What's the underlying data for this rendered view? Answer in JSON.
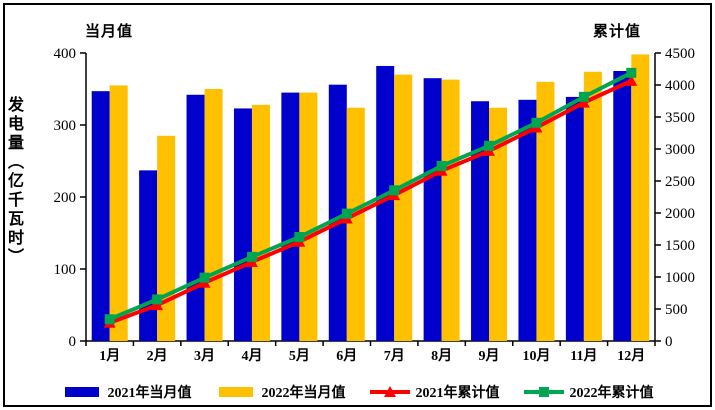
{
  "chart_data": {
    "type": "combo",
    "title": "",
    "categories": [
      "1月",
      "2月",
      "3月",
      "4月",
      "5月",
      "6月",
      "7月",
      "8月",
      "9月",
      "10月",
      "11月",
      "12月"
    ],
    "series": [
      {
        "name": "2021年当月值",
        "type": "bar",
        "axis": "left",
        "color": "#0000cc",
        "marker": "rect",
        "values": [
          347,
          237,
          342,
          323,
          345,
          356,
          382,
          365,
          333,
          335,
          339,
          375
        ]
      },
      {
        "name": "2022年当月值",
        "type": "bar",
        "axis": "left",
        "color": "#ffc000",
        "marker": "rect",
        "values": [
          355,
          285,
          350,
          328,
          345,
          324,
          370,
          363,
          324,
          360,
          374,
          398
        ]
      },
      {
        "name": "2021年累计值",
        "type": "line",
        "axis": "right",
        "color": "#ff0000",
        "marker": "triangle",
        "values": [
          285,
          560,
          910,
          1235,
          1550,
          1915,
          2280,
          2660,
          2970,
          3335,
          3725,
          4065
        ]
      },
      {
        "name": "2022年累计值",
        "type": "line",
        "axis": "right",
        "color": "#00a550",
        "marker": "square",
        "values": [
          340,
          650,
          990,
          1315,
          1625,
          1990,
          2355,
          2735,
          3050,
          3410,
          3815,
          4190
        ]
      }
    ],
    "left_axis": {
      "title": "当月值",
      "min": 0,
      "max": 400,
      "step": 100,
      "tick_labels": [
        "0",
        "100",
        "200",
        "300",
        "400"
      ]
    },
    "right_axis": {
      "title": "累计值",
      "min": 0,
      "max": 4500,
      "step": 500,
      "tick_labels": [
        "0",
        "500",
        "1000",
        "1500",
        "2000",
        "2500",
        "3000",
        "3500",
        "4000",
        "4500"
      ]
    },
    "y_axis_title": "发电量（亿千瓦时）",
    "xlabel": "",
    "ylabel": "发电量（亿千瓦时）",
    "legend_position": "bottom",
    "grid": false,
    "colors": {
      "bar_2021": "#0000cc",
      "bar_2022": "#ffc000",
      "line_2021": "#ff0000",
      "line_2022": "#00a550",
      "axis": "#000000",
      "background": "#ffffff"
    }
  }
}
